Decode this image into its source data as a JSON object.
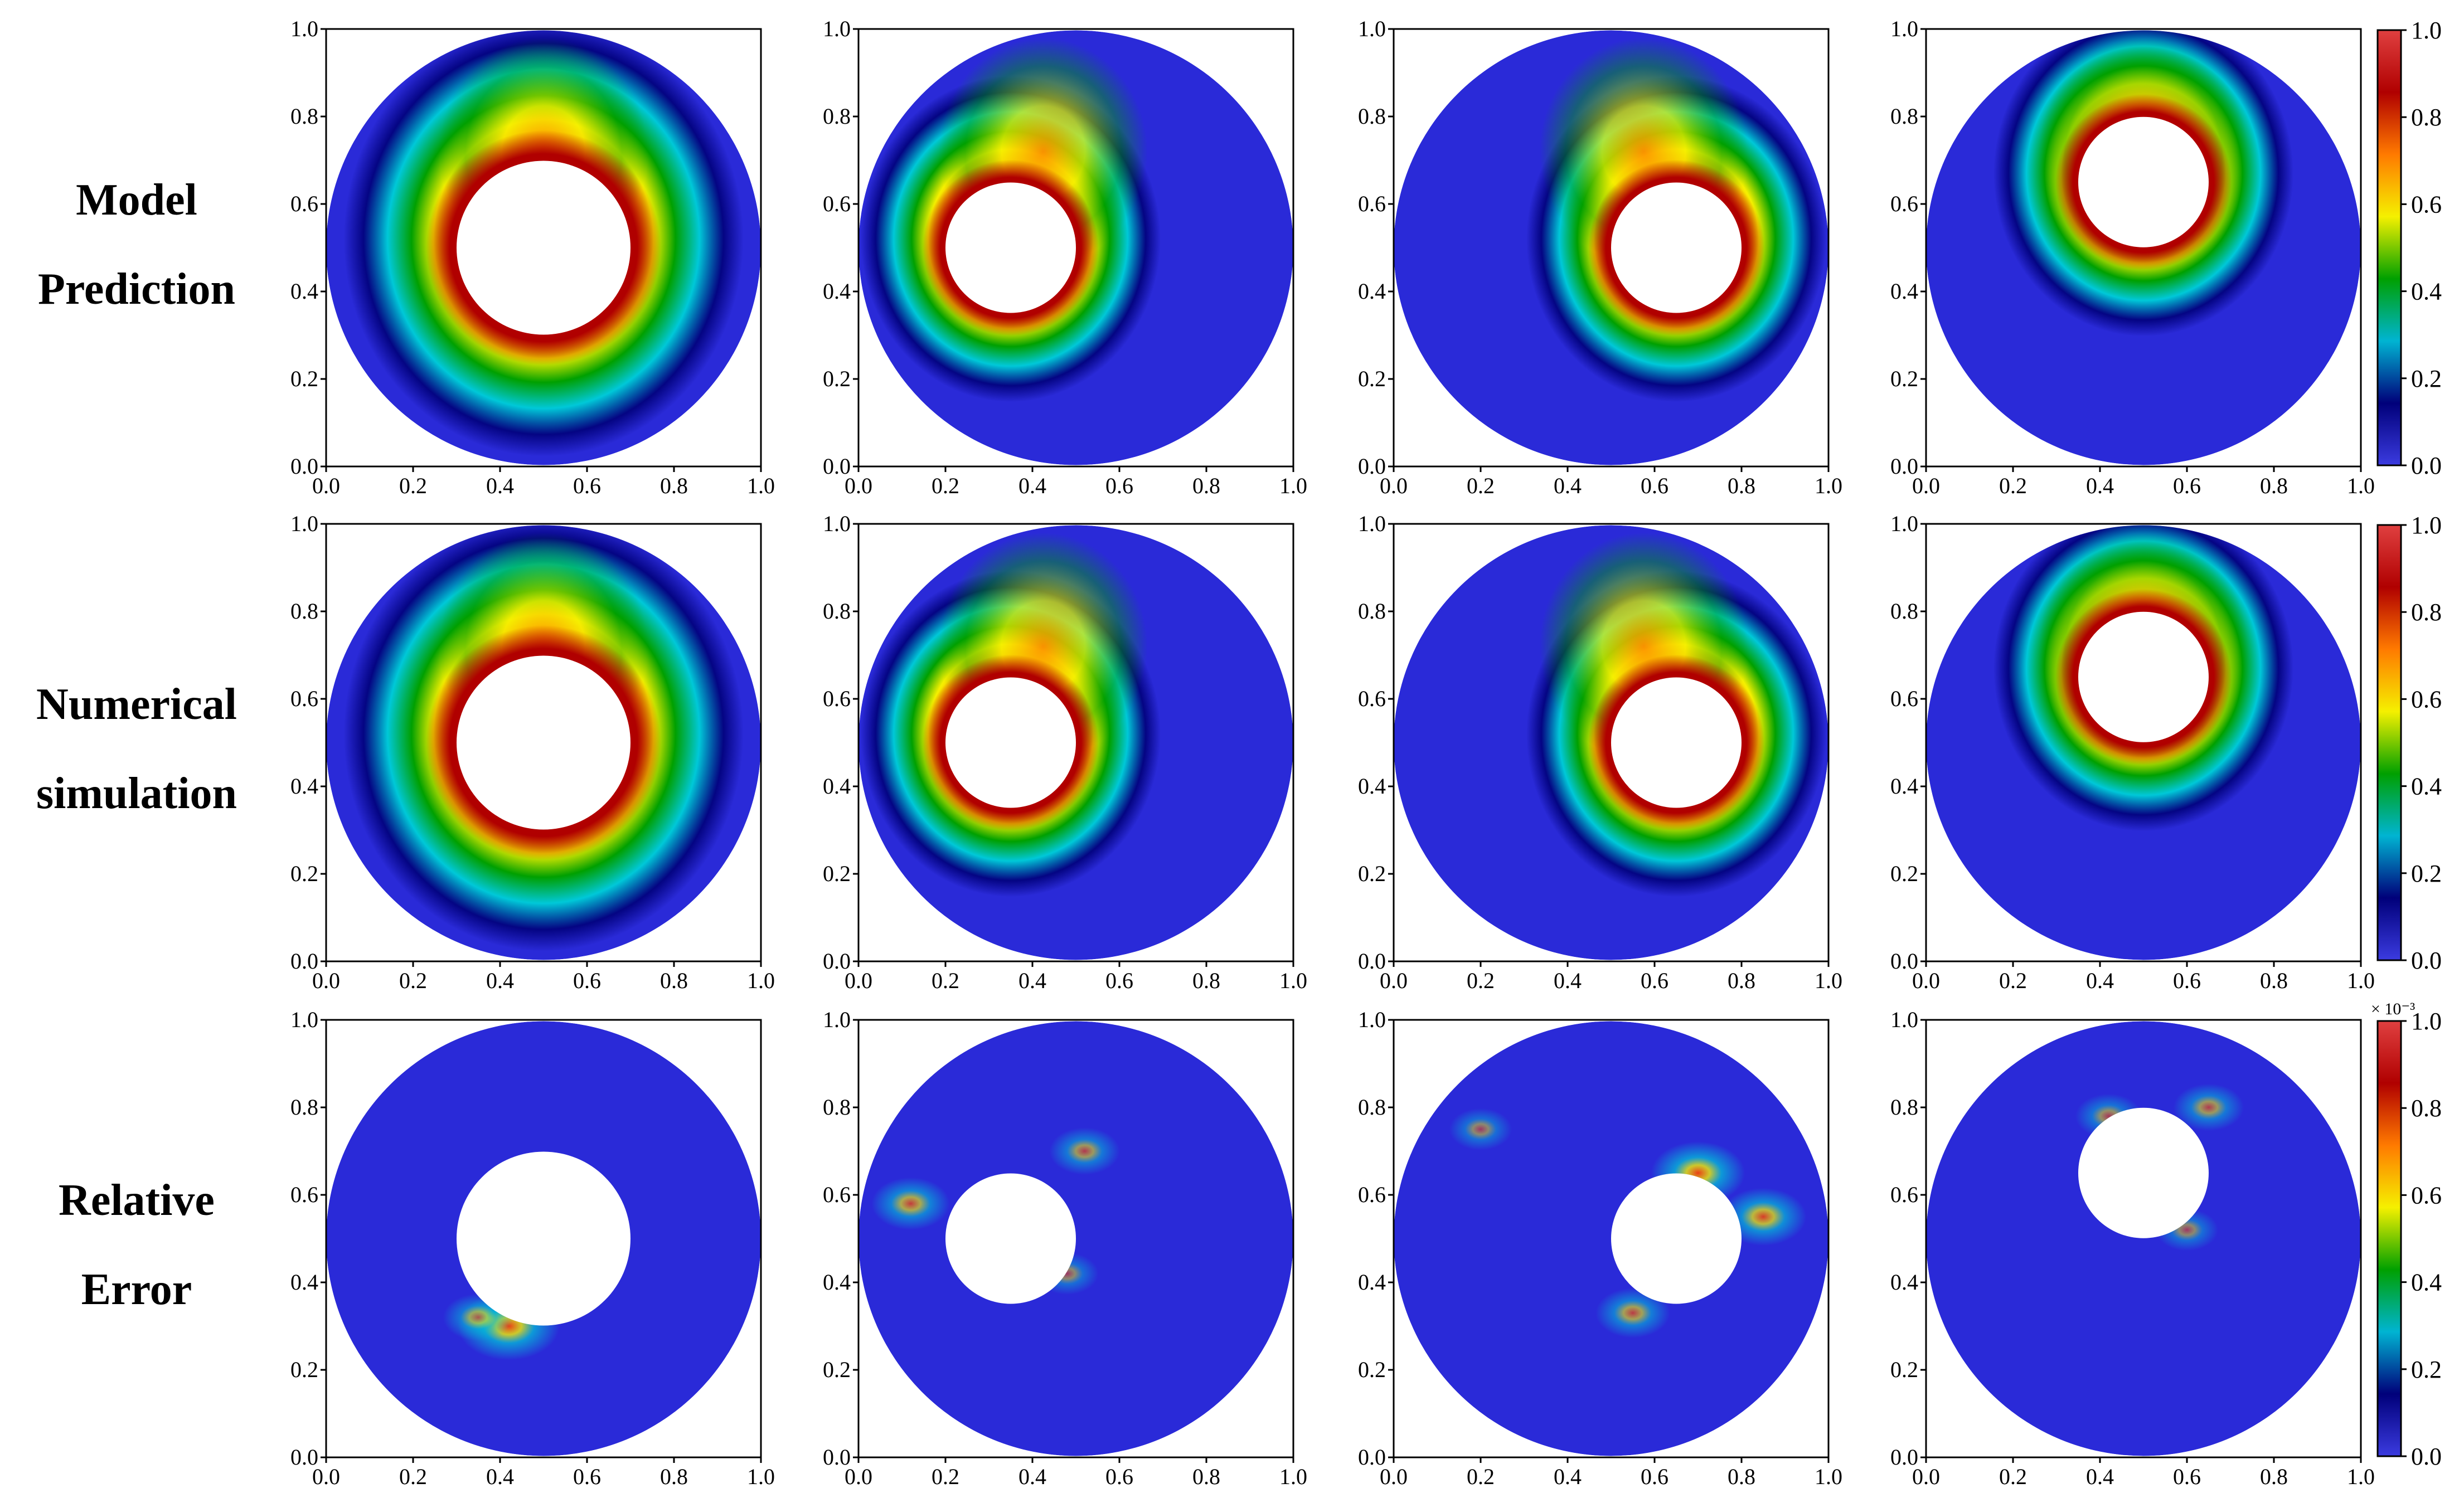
{
  "figure": {
    "row_labels": [
      [
        "Model",
        "Prediction"
      ],
      [
        "Numerical",
        "simulation"
      ],
      [
        "Relative",
        "Error"
      ]
    ]
  },
  "chart_data": {
    "type": "heatmap",
    "rows": 3,
    "cols": 4,
    "domain": "annulus: outer circle center (0.5,0.5) radius 0.5; inner circular obstacle",
    "inner_circles": [
      {
        "cx": 0.5,
        "cy": 0.5,
        "r": 0.2
      },
      {
        "cx": 0.35,
        "cy": 0.5,
        "r": 0.15
      },
      {
        "cx": 0.65,
        "cy": 0.5,
        "r": 0.15
      },
      {
        "cx": 0.5,
        "cy": 0.65,
        "r": 0.15
      }
    ],
    "xlim": [
      0.0,
      1.0
    ],
    "ylim": [
      0.0,
      1.0
    ],
    "x_ticks": [
      "0.0",
      "0.2",
      "0.4",
      "0.6",
      "0.8",
      "1.0"
    ],
    "y_ticks": [
      "0.0",
      "0.2",
      "0.4",
      "0.6",
      "0.8",
      "1.0"
    ],
    "colorbar": {
      "ticks": [
        "0.0",
        "0.2",
        "0.4",
        "0.6",
        "0.8",
        "1.0"
      ],
      "range": [
        0.0,
        1.0
      ],
      "error_multiplier": "× 10⁻³",
      "colormap": [
        "#3b3be0",
        "#00007a",
        "#00b4d2",
        "#00a000",
        "#f5f000",
        "#ff7a00",
        "#b00000",
        "#e04040"
      ]
    },
    "error_hotspots": [
      [
        {
          "x": 0.42,
          "y": 0.3,
          "v": 0.7
        },
        {
          "x": 0.35,
          "y": 0.32,
          "v": 0.3
        }
      ],
      [
        {
          "x": 0.12,
          "y": 0.58,
          "v": 0.4
        },
        {
          "x": 0.52,
          "y": 0.7,
          "v": 0.3
        },
        {
          "x": 0.48,
          "y": 0.42,
          "v": 0.2
        }
      ],
      [
        {
          "x": 0.7,
          "y": 0.65,
          "v": 0.6
        },
        {
          "x": 0.85,
          "y": 0.55,
          "v": 0.5
        },
        {
          "x": 0.55,
          "y": 0.33,
          "v": 0.35
        },
        {
          "x": 0.2,
          "y": 0.75,
          "v": 0.2
        }
      ],
      [
        {
          "x": 0.42,
          "y": 0.78,
          "v": 0.25
        },
        {
          "x": 0.65,
          "y": 0.8,
          "v": 0.3
        },
        {
          "x": 0.6,
          "y": 0.52,
          "v": 0.2
        }
      ]
    ]
  }
}
